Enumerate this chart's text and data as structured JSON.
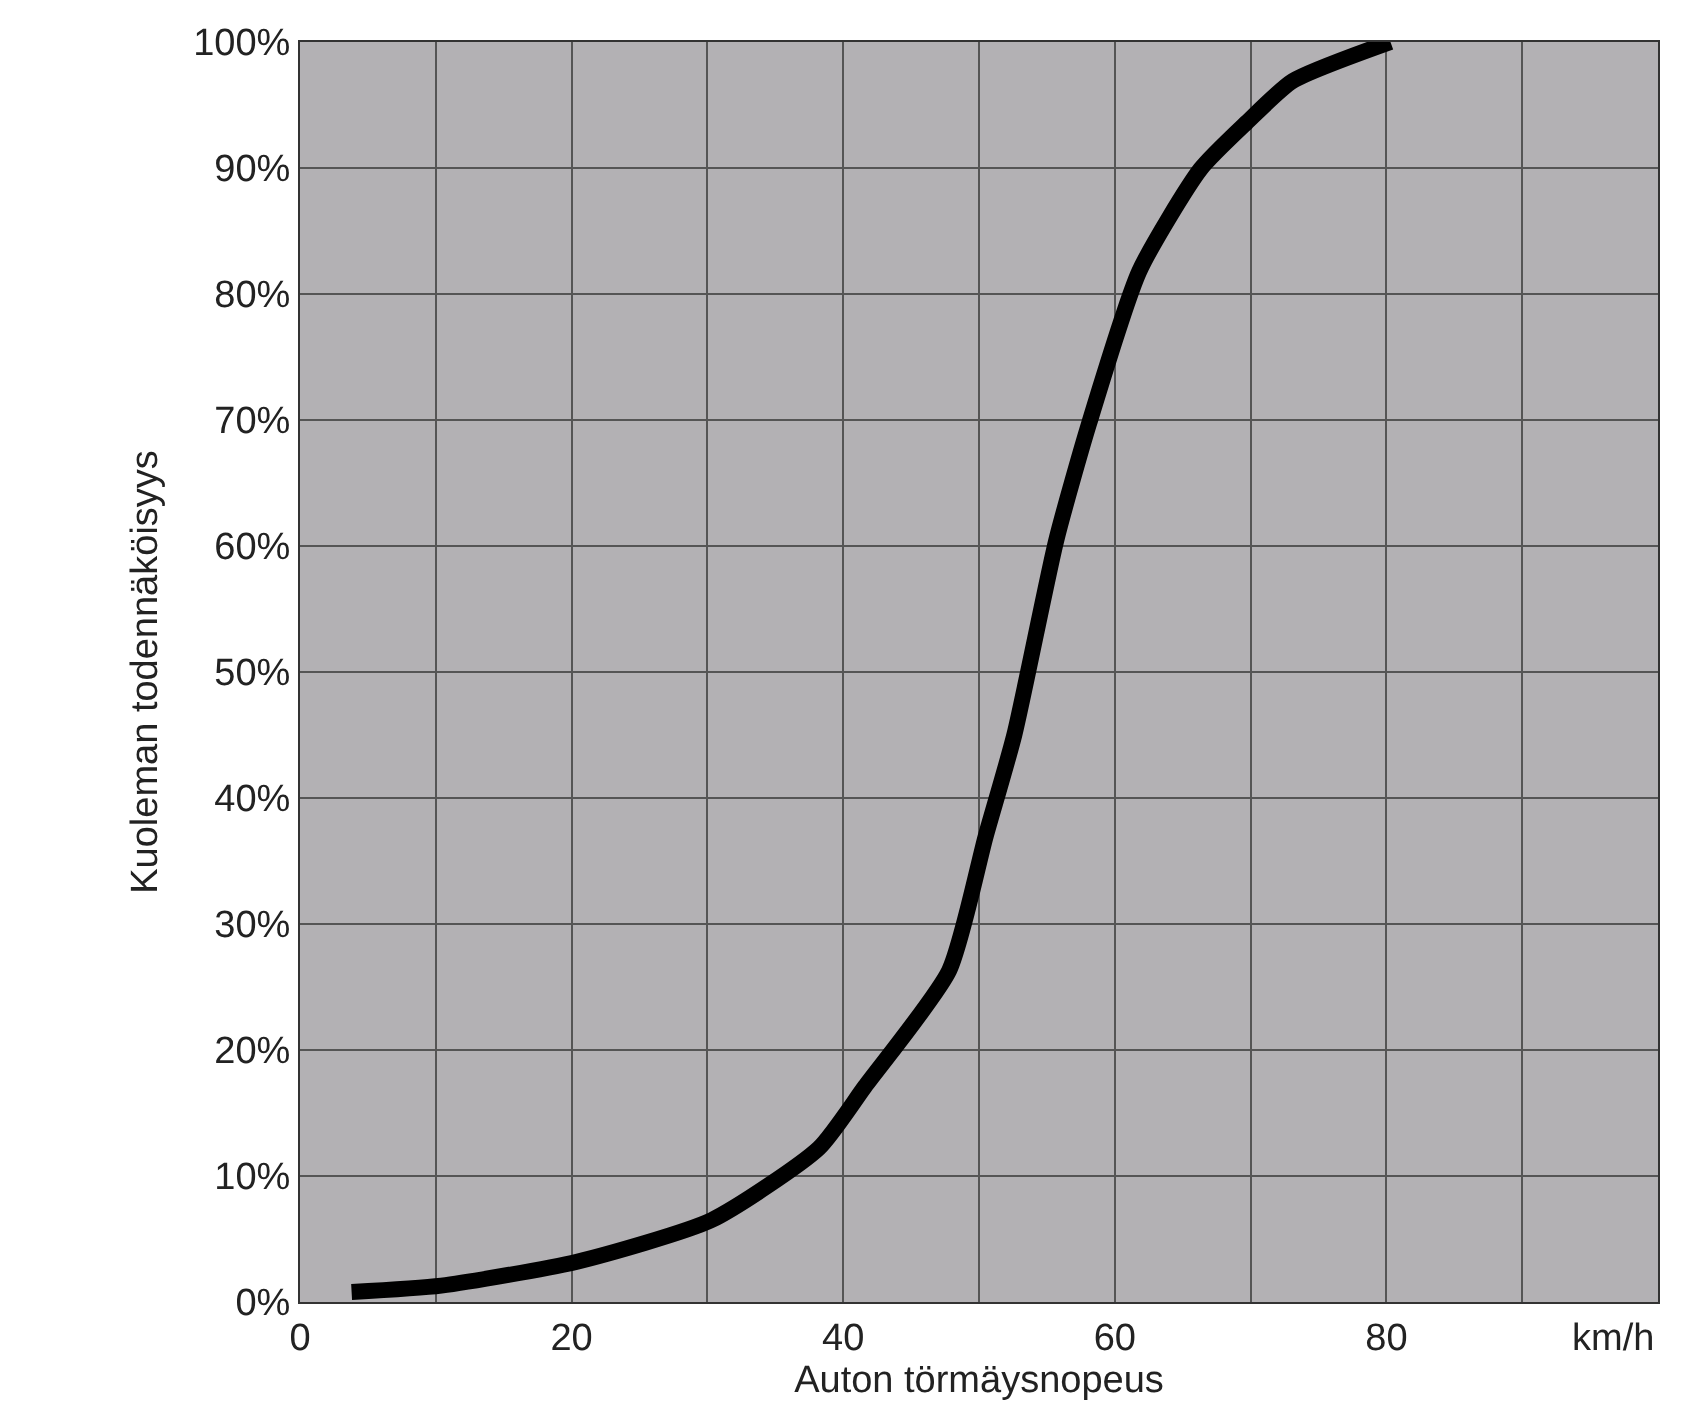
{
  "chart_data": {
    "type": "line",
    "xlabel": "Auton törmäysnopeus",
    "ylabel": "Kuoleman todennäköisyys",
    "annotations": [
      "km/h"
    ],
    "x": [
      3.8,
      10.4,
      20.4,
      30.3,
      38.2,
      41.6,
      47.8,
      50.5,
      52.6,
      55.7,
      58.1,
      61.8,
      66.3,
      69.7,
      73.1,
      80.3
    ],
    "series": [
      {
        "color": "#000000",
        "values": [
          0.8,
          1.3,
          3.2,
          6.5,
          12.2,
          17.1,
          26.3,
          37,
          45,
          60.5,
          69.7,
          81.8,
          89.9,
          93.6,
          96.9,
          100
        ]
      }
    ],
    "xlim": [
      0,
      100
    ],
    "xticks": [
      0,
      {
        "value": 10,
        "label": null
      },
      20,
      {
        "value": 30,
        "label": null
      },
      40,
      {
        "value": 50,
        "label": null
      },
      60,
      {
        "value": 70,
        "label": null
      },
      80,
      {
        "value": 90,
        "label": null
      },
      {
        "value": 100,
        "label": null
      }
    ],
    "ylim": [
      0,
      100
    ],
    "yticks": [
      {
        "value": 0,
        "label": "0%"
      },
      {
        "value": 10,
        "label": "10%"
      },
      {
        "value": 20,
        "label": "20%"
      },
      {
        "value": 30,
        "label": "30%"
      },
      {
        "value": 40,
        "label": "40%"
      },
      {
        "value": 50,
        "label": "50%"
      },
      {
        "value": 60,
        "label": "60%"
      },
      {
        "value": 70,
        "label": "70%"
      },
      {
        "value": 80,
        "label": "80%"
      },
      {
        "value": 90,
        "label": "90%"
      },
      {
        "value": 100,
        "label": "100%"
      }
    ],
    "grid": true,
    "marker": "none",
    "line_style": "solid",
    "legend": false
  }
}
